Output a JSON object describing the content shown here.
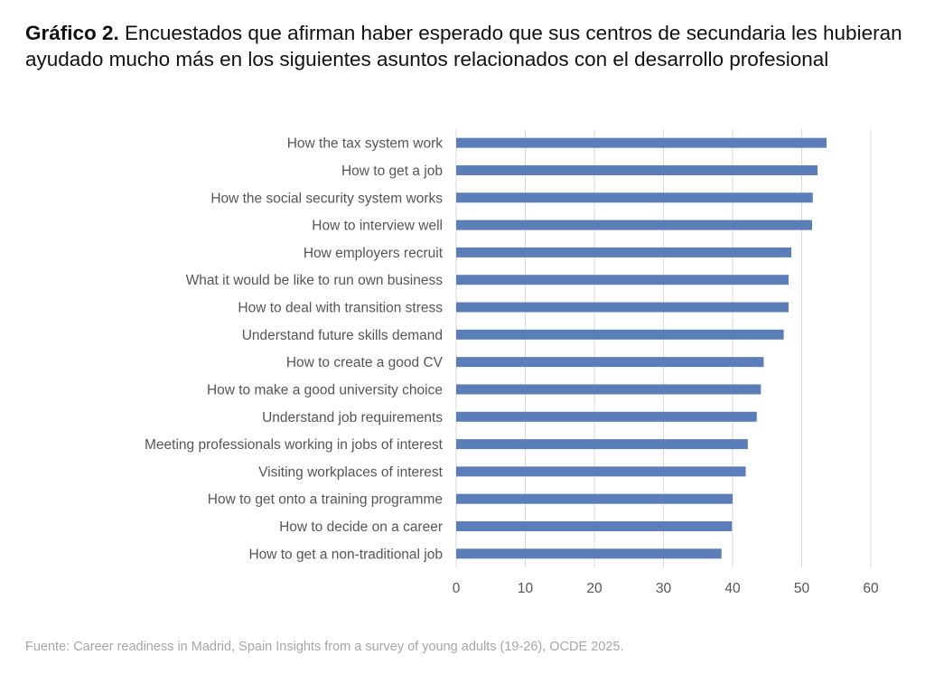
{
  "title": {
    "prefix": "Gráfico 2.",
    "text": " Encuestados que afirman haber esperado que sus centros de secundaria les hubieran ayudado mucho más en los siguientes asuntos relacionados con el desarrollo profesional"
  },
  "source": "Fuente: Career readiness in Madrid, Spain Insights from a survey of young adults (19-26), OCDE 2025.",
  "chart_data": {
    "type": "bar",
    "orientation": "horizontal",
    "categories": [
      "How the tax system work",
      "How to get a job",
      "How the social security system works",
      "How to interview well",
      "How employers recruit",
      "What it would be like to run own business",
      "How to deal with transition stress",
      "Understand future skills demand",
      "How to create a good CV ",
      "How to make a good university choice",
      "Understand job requirements",
      "Meeting professionals working in jobs of interest",
      "Visiting workplaces of interest",
      "How to get onto a training programme",
      "How to decide on a career",
      "How to get a non-traditional job"
    ],
    "values": [
      53.6,
      52.3,
      51.6,
      51.5,
      48.5,
      48.1,
      48.1,
      47.4,
      44.5,
      44.1,
      43.5,
      42.2,
      41.9,
      40.0,
      39.9,
      38.4
    ],
    "xlim": [
      0,
      60
    ],
    "xticks": [
      0,
      10,
      20,
      30,
      40,
      50,
      60
    ],
    "grid": true,
    "bar_color": "#5b7db8",
    "grid_color": "#d9d9d9"
  }
}
